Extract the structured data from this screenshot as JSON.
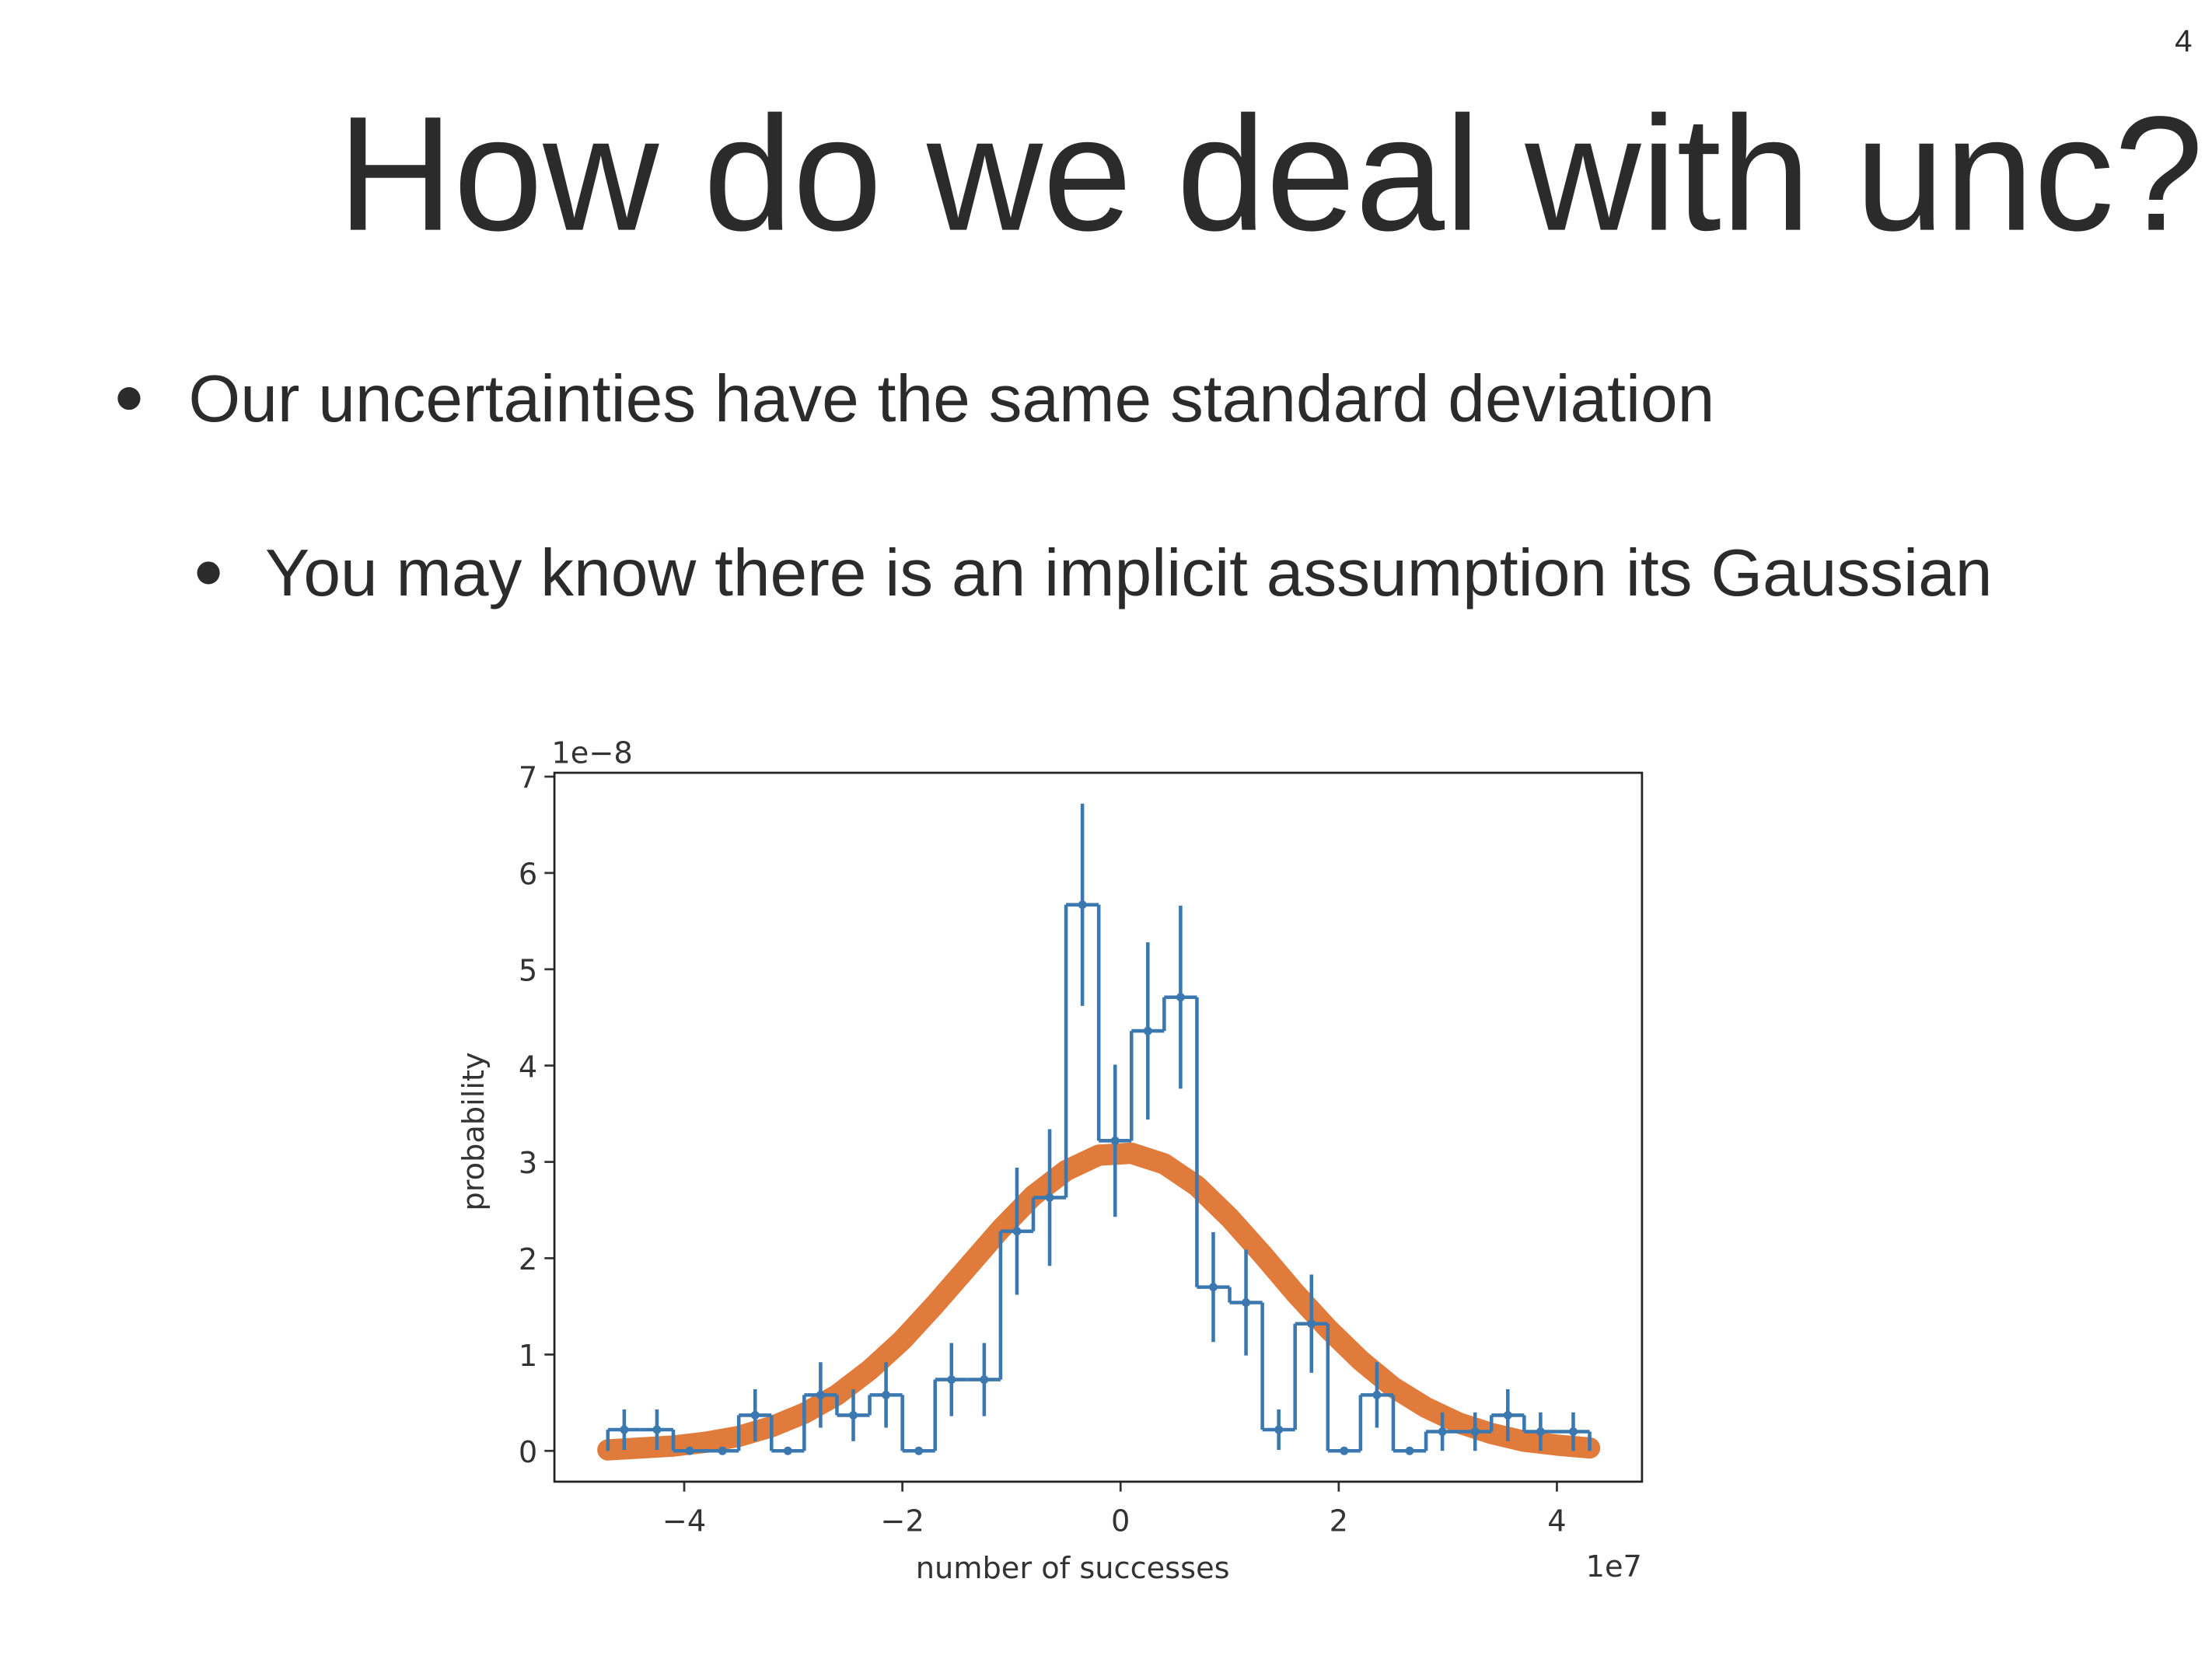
{
  "page_number": "4",
  "title": "How do we deal with unc?",
  "bullets": [
    "Our uncertainties  have the same standard deviation"
  ],
  "sub_bullets": [
    "You may know there is an implicit assumption its Gaussian"
  ],
  "chart_data": {
    "type": "histogram",
    "xlabel": "number of successes",
    "ylabel": "probability",
    "x_offset_label": "1e7",
    "y_offset_label": "1e−8",
    "bins": [
      -4.7,
      -4.4,
      -4.1,
      -3.8,
      -3.5,
      -3.2,
      -2.9,
      -2.6,
      -2.3,
      -2.0,
      -1.7,
      -1.4,
      -1.1,
      -0.8,
      -0.5,
      -0.2,
      0.1,
      0.4,
      0.7,
      1.0,
      1.3,
      1.6,
      1.9,
      2.2,
      2.5,
      2.8,
      3.1,
      3.4,
      3.7,
      4.0,
      4.3
    ],
    "counts": [
      0.22,
      0.22,
      0.0,
      0.0,
      0.37,
      0.0,
      0.58,
      0.37,
      0.58,
      0.0,
      0.74,
      0.74,
      2.28,
      2.63,
      5.67,
      3.22,
      4.36,
      4.71,
      1.7,
      1.54,
      0.22,
      1.32,
      0.0,
      0.58,
      0.0,
      0.2,
      0.2,
      0.37,
      0.2,
      0.2
    ],
    "errors": [
      0.21,
      0.21,
      0.0,
      0.0,
      0.27,
      0.0,
      0.34,
      0.27,
      0.34,
      0.0,
      0.38,
      0.38,
      0.66,
      0.71,
      1.05,
      0.79,
      0.92,
      0.95,
      0.57,
      0.55,
      0.21,
      0.51,
      0.0,
      0.34,
      0.0,
      0.2,
      0.2,
      0.27,
      0.2,
      0.2
    ],
    "color": "#3b78b0",
    "fit": {
      "color": "#e07b3c",
      "x": [
        -4.7,
        -4.4,
        -4.1,
        -3.8,
        -3.5,
        -3.2,
        -2.9,
        -2.6,
        -2.3,
        -2.0,
        -1.7,
        -1.4,
        -1.1,
        -0.8,
        -0.5,
        -0.2,
        0.1,
        0.4,
        0.7,
        1.0,
        1.3,
        1.6,
        1.9,
        2.2,
        2.5,
        2.8,
        3.1,
        3.4,
        3.7,
        4.0,
        4.3
      ],
      "values": [
        0.01,
        0.03,
        0.05,
        0.09,
        0.15,
        0.25,
        0.39,
        0.58,
        0.84,
        1.15,
        1.52,
        1.91,
        2.3,
        2.65,
        2.91,
        3.07,
        3.09,
        2.98,
        2.75,
        2.42,
        2.04,
        1.64,
        1.27,
        0.94,
        0.66,
        0.45,
        0.29,
        0.18,
        0.1,
        0.06,
        0.03
      ]
    },
    "xlim": [
      -5.19,
      4.78
    ],
    "ylim": [
      -0.32,
      7.04
    ],
    "xticks": [
      {
        "value": -4,
        "label": "−4"
      },
      {
        "value": -2,
        "label": "−2"
      },
      0,
      2,
      4
    ],
    "yticks": [
      0,
      1,
      2,
      3,
      4,
      5,
      6,
      7
    ]
  }
}
